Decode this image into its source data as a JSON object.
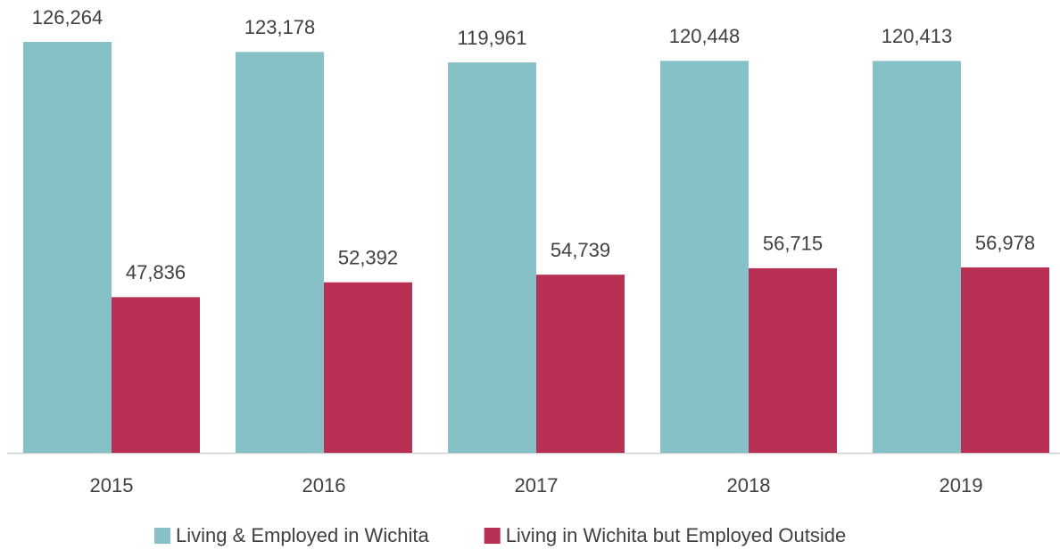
{
  "chart_data": {
    "type": "bar",
    "categories": [
      "2015",
      "2016",
      "2017",
      "2018",
      "2019"
    ],
    "series": [
      {
        "name": "Living & Employed in Wichita",
        "color": "#86c1c8",
        "values": [
          126264,
          123178,
          119961,
          120448,
          120413
        ],
        "value_labels": [
          "126,264",
          "123,178",
          "119,961",
          "120,448",
          "120,413"
        ]
      },
      {
        "name": "Living in Wichita but Employed Outside",
        "color": "#b83054",
        "values": [
          47836,
          52392,
          54739,
          56715,
          56978
        ],
        "value_labels": [
          "47,836",
          "52,392",
          "54,739",
          "56,715",
          "56,978"
        ]
      }
    ],
    "legend": "bottom"
  }
}
